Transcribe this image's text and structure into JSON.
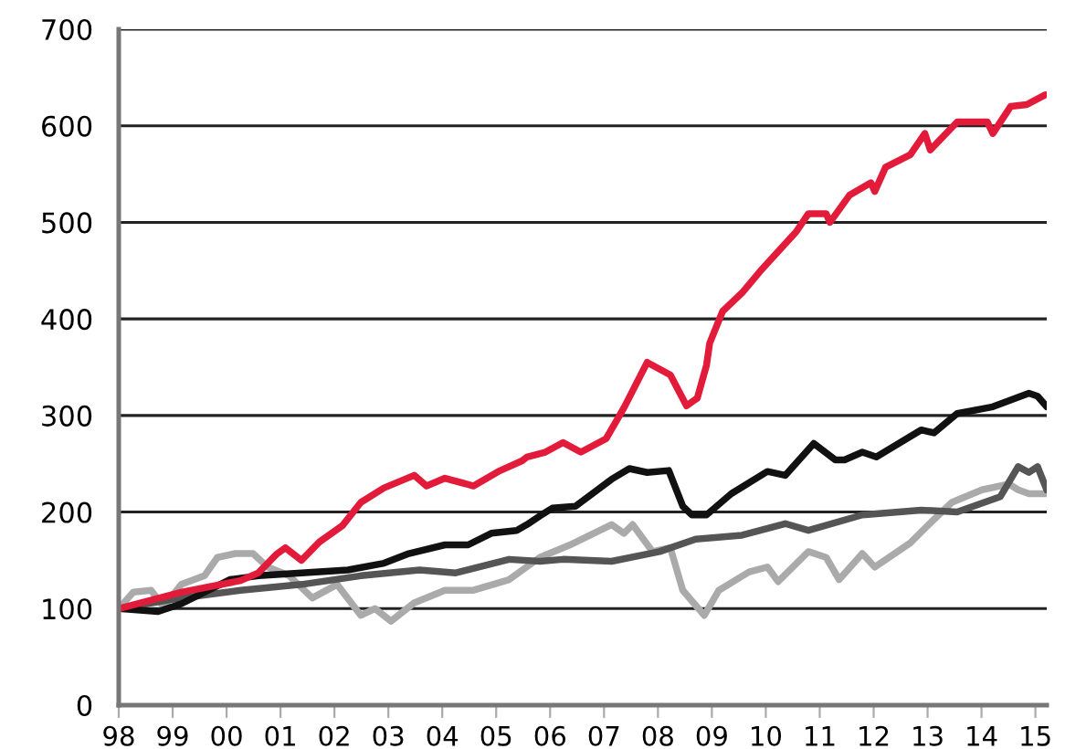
{
  "chart_data": {
    "type": "line",
    "series": [
      {
        "color": "#aaaaaa",
        "x": [
          1998.0,
          1998.27,
          1998.6,
          1998.83,
          1999.16,
          1999.59,
          1999.83,
          2000.16,
          2000.49,
          2000.76,
          2001.16,
          2001.59,
          2002.05,
          2002.49,
          2002.75,
          2003.05,
          2003.48,
          2004.05,
          2004.58,
          2005.24,
          2005.81,
          2006.37,
          2007.14,
          2007.37,
          2007.53,
          2007.9,
          2008.23,
          2008.46,
          2008.86,
          2009.13,
          2009.69,
          2010.03,
          2010.23,
          2010.79,
          2011.12,
          2011.36,
          2011.79,
          2012.02,
          2012.68,
          2013.02,
          2013.45,
          2014.01,
          2014.51,
          2014.68,
          2014.88,
          2015.21
        ],
        "values": [
          100,
          117,
          119,
          102,
          125,
          134,
          153,
          157,
          157,
          143,
          134,
          111,
          125,
          93,
          100,
          87,
          106,
          119,
          119,
          130,
          153,
          166,
          187,
          178,
          187,
          159,
          163,
          119,
          93,
          119,
          138,
          143,
          128,
          159,
          153,
          130,
          157,
          143,
          168,
          187,
          210,
          223,
          229,
          223,
          219,
          219
        ]
      },
      {
        "color": "#555555",
        "x": [
          1998.0,
          1999.16,
          2000.26,
          2001.39,
          2002.49,
          2003.58,
          2004.25,
          2005.24,
          2005.81,
          2006.24,
          2007.14,
          2008.03,
          2008.7,
          2009.56,
          2010.36,
          2010.79,
          2011.79,
          2012.88,
          2013.55,
          2014.35,
          2014.68,
          2014.88,
          2015.04,
          2015.21
        ],
        "values": [
          100,
          111,
          119,
          125,
          134,
          140,
          137,
          151,
          149,
          151,
          149,
          159,
          172,
          176,
          188,
          181,
          197,
          202,
          200,
          216,
          247,
          241,
          247,
          223
        ]
      },
      {
        "color": "#111111",
        "x": [
          1998.0,
          1998.73,
          1999.16,
          2000.06,
          2000.59,
          2001.39,
          2002.25,
          2002.92,
          2003.38,
          2004.05,
          2004.48,
          2004.91,
          2005.38,
          2005.57,
          2005.81,
          2006.04,
          2006.47,
          2007.14,
          2007.47,
          2007.8,
          2008.2,
          2008.46,
          2008.63,
          2008.9,
          2009.36,
          2010.03,
          2010.36,
          2010.89,
          2011.29,
          2011.46,
          2011.79,
          2012.05,
          2012.88,
          2013.12,
          2013.55,
          2014.21,
          2014.88,
          2015.04,
          2015.21
        ],
        "values": [
          100,
          97,
          105,
          130,
          134,
          137,
          140,
          147,
          157,
          166,
          166,
          178,
          181,
          187,
          196,
          204,
          206,
          234,
          245,
          241,
          243,
          206,
          197,
          197,
          219,
          242,
          238,
          271,
          254,
          254,
          262,
          257,
          285,
          282,
          302,
          309,
          323,
          320,
          309
        ]
      },
      {
        "color": "#e31b3b",
        "x": [
          1998.0,
          1999.16,
          2000.26,
          2000.59,
          2000.92,
          2001.09,
          2001.39,
          2001.72,
          2002.15,
          2002.49,
          2002.92,
          2003.48,
          2003.71,
          2004.05,
          2004.58,
          2005.04,
          2005.48,
          2005.57,
          2005.91,
          2006.24,
          2006.57,
          2007.04,
          2007.37,
          2007.8,
          2008.23,
          2008.53,
          2008.73,
          2008.9,
          2008.96,
          2009.2,
          2009.56,
          2009.89,
          2010.23,
          2010.56,
          2010.79,
          2011.12,
          2011.19,
          2011.55,
          2011.95,
          2012.02,
          2012.22,
          2012.68,
          2012.95,
          2013.05,
          2013.55,
          2014.11,
          2014.21,
          2014.54,
          2014.84,
          2015.18
        ],
        "values": [
          100,
          117,
          129,
          137,
          156,
          163,
          150,
          169,
          186,
          210,
          225,
          238,
          227,
          235,
          227,
          242,
          253,
          257,
          262,
          272,
          262,
          276,
          308,
          355,
          342,
          310,
          318,
          352,
          375,
          408,
          427,
          449,
          470,
          490,
          509,
          509,
          500,
          528,
          541,
          532,
          557,
          570,
          592,
          575,
          604,
          604,
          592,
          620,
          622,
          632
        ]
      }
    ],
    "xlim": [
      1998,
      2015.21
    ],
    "xticks": [
      {
        "value": 1998,
        "label": "98"
      },
      {
        "value": 1999,
        "label": "99"
      },
      {
        "value": 2000,
        "label": "00"
      },
      {
        "value": 2001,
        "label": "01"
      },
      {
        "value": 2002,
        "label": "02"
      },
      {
        "value": 2003,
        "label": "03"
      },
      {
        "value": 2004,
        "label": "04"
      },
      {
        "value": 2005,
        "label": "05"
      },
      {
        "value": 2006,
        "label": "06"
      },
      {
        "value": 2007,
        "label": "07"
      },
      {
        "value": 2008,
        "label": "08"
      },
      {
        "value": 2009,
        "label": "09"
      },
      {
        "value": 2010,
        "label": "10"
      },
      {
        "value": 2011,
        "label": "11"
      },
      {
        "value": 2012,
        "label": "12"
      },
      {
        "value": 2013,
        "label": "13"
      },
      {
        "value": 2014,
        "label": "14"
      },
      {
        "value": 2015,
        "label": "15"
      }
    ],
    "ylim": [
      0,
      700
    ],
    "yticks": [
      0,
      100,
      200,
      300,
      400,
      500,
      600,
      700
    ],
    "grid": "y",
    "marker": "none",
    "line_style": "solid"
  }
}
